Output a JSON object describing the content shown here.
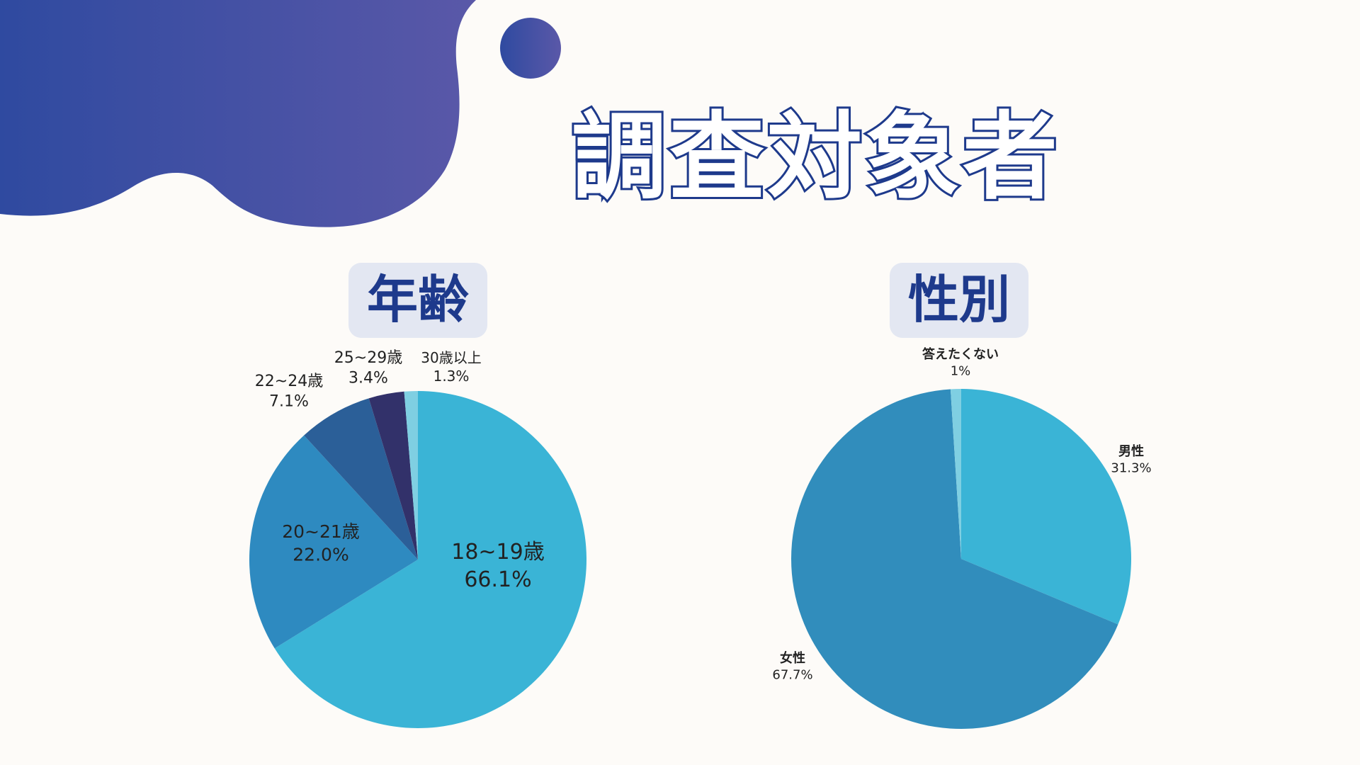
{
  "page": {
    "title": "調査対象者"
  },
  "colors": {
    "background": "#fdfbf8",
    "blob_start": "#2f4aa0",
    "blob_end": "#5a58a8",
    "title_outline": "#1e3a8c",
    "label_box": "#e3e7f2"
  },
  "chart_data": [
    {
      "type": "pie",
      "title": "年齢",
      "slices": [
        {
          "label": "18~19歳",
          "value": 66.1,
          "display": "66.1%",
          "color": "#3ab4d6"
        },
        {
          "label": "20~21歳",
          "value": 22.0,
          "display": "22.0%",
          "color": "#2e8ac0"
        },
        {
          "label": "22~24歳",
          "value": 7.1,
          "display": "7.1%",
          "color": "#2b5f98"
        },
        {
          "label": "25~29歳",
          "value": 3.4,
          "display": "3.4%",
          "color": "#32316a"
        },
        {
          "label": "30歳以上",
          "value": 1.3,
          "display": "1.3%",
          "color": "#7fcfe2"
        }
      ]
    },
    {
      "type": "pie",
      "title": "性別",
      "slices": [
        {
          "label": "男性",
          "value": 31.3,
          "display": "31.3%",
          "color": "#3ab4d6"
        },
        {
          "label": "女性",
          "value": 67.7,
          "display": "67.7%",
          "color": "#318dbc"
        },
        {
          "label": "答えたくない",
          "value": 1,
          "display": "1%",
          "color": "#7fcfe2"
        }
      ]
    }
  ]
}
